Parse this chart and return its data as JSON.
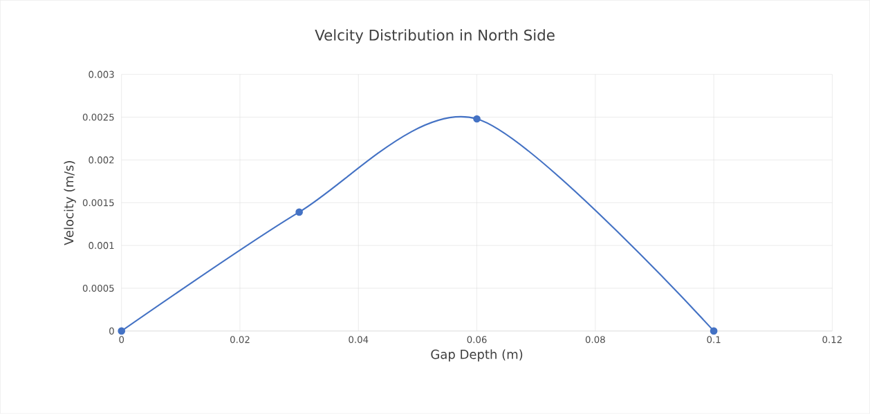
{
  "chart_data": {
    "type": "line",
    "title": "Velcity Distribution in North Side",
    "xlabel": "Gap Depth (m)",
    "ylabel": "Velocity (m/s)",
    "x": [
      0,
      0.03,
      0.06,
      0.1
    ],
    "series": [
      {
        "color": "#4472c4",
        "values": [
          0,
          0.00139,
          0.00248,
          0
        ]
      }
    ],
    "xlim": [
      0,
      0.12
    ],
    "xticks": [
      0,
      0.02,
      0.04,
      0.06,
      0.08,
      0.1,
      0.12
    ],
    "ylim": [
      0,
      0.003
    ],
    "yticks": [
      0,
      0.0005,
      0.001,
      0.0015,
      0.002,
      0.0025,
      0.003
    ],
    "grid": true,
    "marker": "circle",
    "line_style": "solid"
  }
}
